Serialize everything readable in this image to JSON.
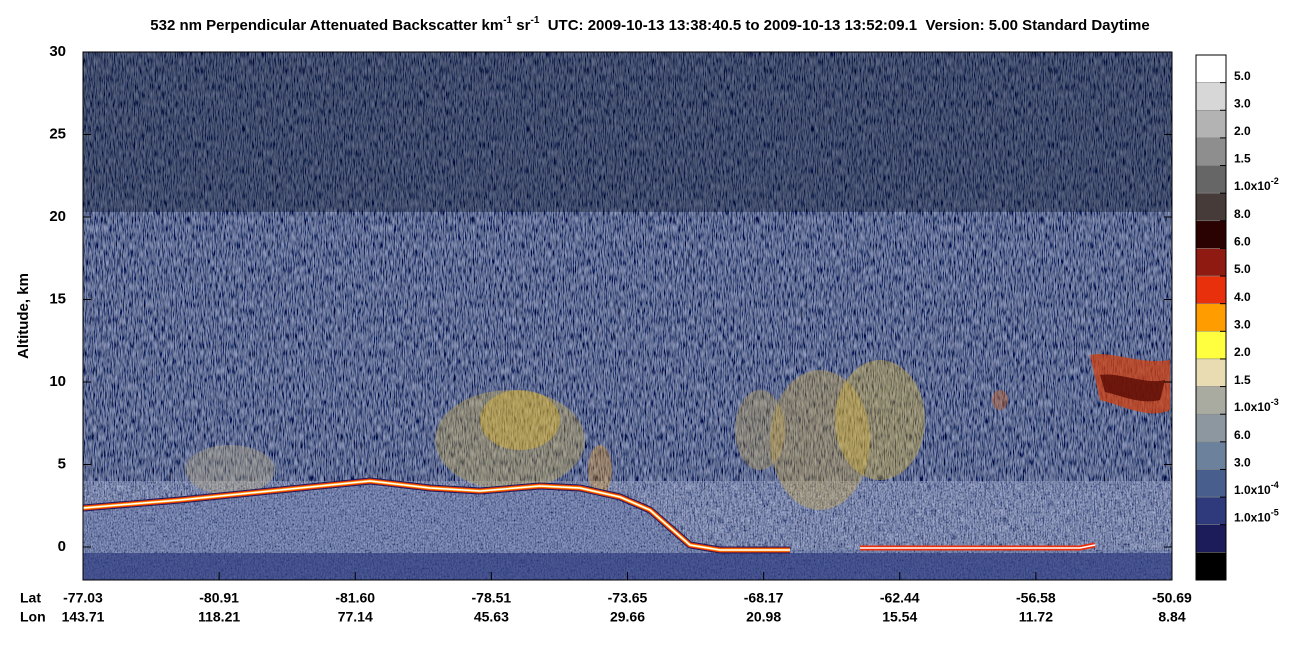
{
  "chart_data": {
    "type": "image",
    "title": [
      "532 nm Perpendicular Attenuated Backscatter km",
      "-1",
      " sr",
      "-1",
      "  UTC: 2009-10-13 13:38:40.5 to 2009-10-13 13:52:09.1  Version: 5.00 Standard Daytime"
    ],
    "ylabel": "Altitude, km",
    "ylim": [
      -2,
      30
    ],
    "yticks": [
      0,
      5,
      10,
      15,
      20,
      25,
      30
    ],
    "lat_label": "Lat",
    "lon_label": "Lon",
    "lat": [
      "-77.03",
      "-80.91",
      "-81.60",
      "-78.51",
      "-73.65",
      "-68.17",
      "-62.44",
      "-56.58",
      "-50.69"
    ],
    "lon": [
      "143.71",
      "118.21",
      "77.14",
      "45.63",
      "29.66",
      "20.98",
      "15.54",
      "11.72",
      "8.84"
    ],
    "colorbar": {
      "colors": [
        "#ffffff",
        "#d7d7d7",
        "#b3b3b3",
        "#8e8e8e",
        "#666666",
        "#463b39",
        "#2b0202",
        "#8e1a12",
        "#e8300c",
        "#ff9c00",
        "#ffff40",
        "#e9dcb2",
        "#a9aaa0",
        "#8c979f",
        "#6c819b",
        "#485e8c",
        "#2e3a7c",
        "#1c1c5a",
        "#000000"
      ],
      "labels": [
        "5.0",
        "3.0",
        "2.0",
        "1.5",
        [
          "1.0x10",
          "-2"
        ],
        "8.0",
        "6.0",
        "5.0",
        "4.0",
        "3.0",
        "2.0",
        "1.5",
        [
          "1.0x10",
          "-3"
        ],
        "6.0",
        "3.0",
        [
          "1.0x10",
          "-4"
        ],
        [
          "1.0x10",
          "-5"
        ]
      ]
    }
  }
}
